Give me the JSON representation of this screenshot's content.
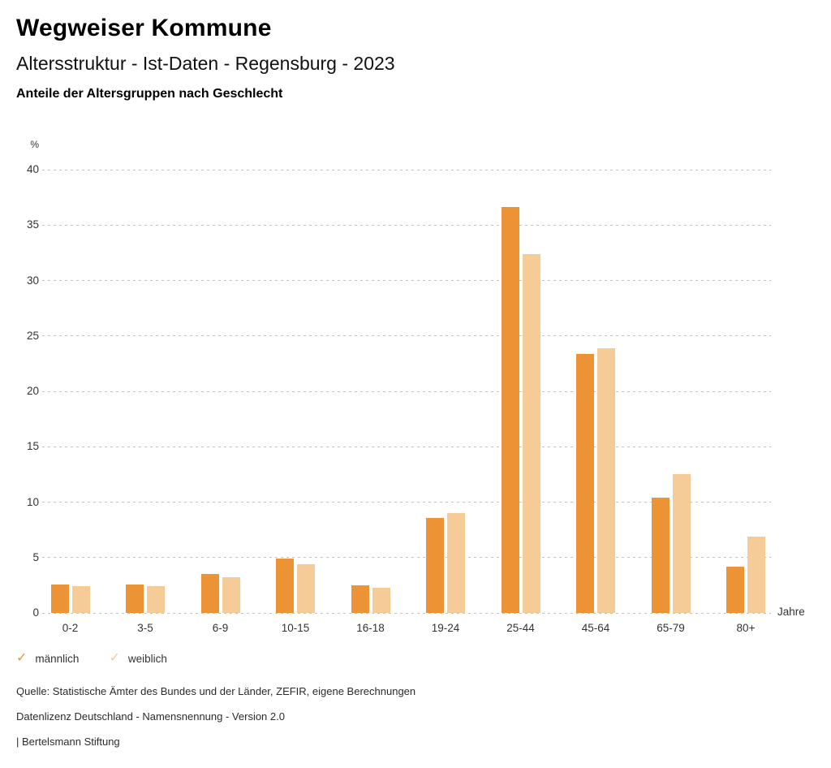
{
  "header": {
    "title": "Wegweiser Kommune",
    "subtitle": "Altersstruktur - Ist-Daten - Regensburg - 2023",
    "chart_heading": "Anteile der Altersgruppen nach Geschlecht"
  },
  "chart_data": {
    "type": "bar",
    "title": "Anteile der Altersgruppen nach Geschlecht",
    "categories": [
      "0-2",
      "3-5",
      "6-9",
      "10-15",
      "16-18",
      "19-24",
      "25-44",
      "45-64",
      "65-79",
      "80+"
    ],
    "series": [
      {
        "name": "männlich",
        "color": "#EC9435",
        "values": [
          2.6,
          2.6,
          3.5,
          4.9,
          2.5,
          8.6,
          36.6,
          23.4,
          10.4,
          4.2
        ]
      },
      {
        "name": "weiblich",
        "color": "#F5CC98",
        "values": [
          2.4,
          2.4,
          3.2,
          4.4,
          2.3,
          9.0,
          32.4,
          23.9,
          12.5,
          6.9
        ]
      }
    ],
    "ylabel": "%",
    "xlabel": "Jahre",
    "ylim": [
      0,
      40
    ],
    "yticks": [
      0,
      5,
      10,
      15,
      20,
      25,
      30,
      35,
      40
    ],
    "grid": "horizontal-dotted",
    "gridline_color": "#c3c3c3",
    "legend_position": "bottom-left"
  },
  "legend": {
    "check_icon": "✓",
    "items": [
      {
        "label": "männlich",
        "color": "#EC9435"
      },
      {
        "label": "weiblich",
        "color": "#F5CC98"
      }
    ]
  },
  "footer": {
    "source": "Quelle: Statistische Ämter des Bundes und der Länder, ZEFIR, eigene Berechnungen",
    "license": "Datenlizenz Deutschland - Namensnennung - Version 2.0",
    "attribution": "| Bertelsmann Stiftung"
  }
}
